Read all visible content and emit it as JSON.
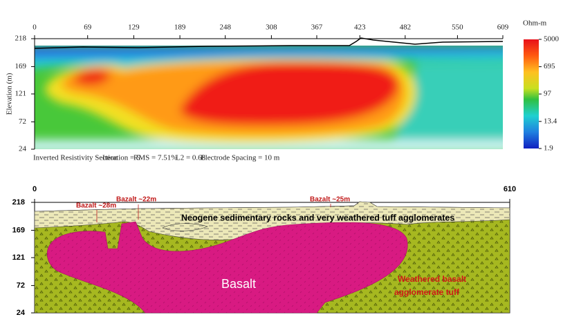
{
  "resistivity_section": {
    "x_ticks": [
      0,
      69,
      129,
      189,
      248,
      308,
      367,
      423,
      482,
      550,
      609
    ],
    "y_label": "Elevation (m)",
    "y_ticks": [
      218,
      169,
      121,
      72,
      24
    ],
    "colorbar": {
      "unit": "Ohm-m",
      "log": true,
      "ticks": [
        5000,
        695,
        97,
        13.4,
        1.9
      ]
    },
    "caption": [
      "Inverted Resistivity Section",
      "Iteration = 5",
      "RMS = 7.51%",
      "L2 = 0.68",
      "Electrode Spacing = 10 m"
    ]
  },
  "interpretation": {
    "x_ticks": [
      0,
      610
    ],
    "y_ticks": [
      218,
      169,
      121,
      72,
      24
    ],
    "labels": {
      "bazalt_1": "Bazalt ~28m",
      "bazalt_2": "Bazalt ~22m",
      "bazalt_3": "Bazalt ~25m",
      "sediments": "Neogene sedimentary rocks and very weathered tuff agglomerates",
      "basalt": "Basalt",
      "weathered": [
        "Weathered basalt",
        "agglomerate tuff"
      ]
    }
  }
}
